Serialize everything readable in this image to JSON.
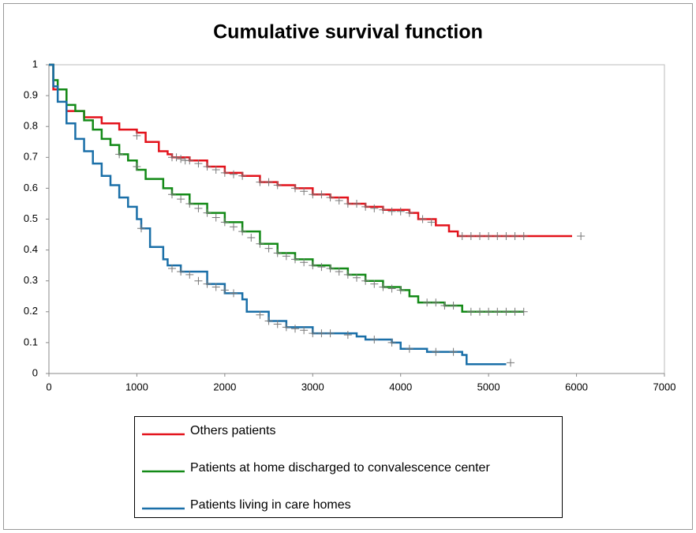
{
  "chart_data": {
    "type": "line",
    "step": true,
    "title": "Cumulative survival function",
    "xlim": [
      0,
      7000
    ],
    "xticks": [
      0,
      1000,
      2000,
      3000,
      4000,
      5000,
      6000,
      7000
    ],
    "ylim": [
      0,
      1
    ],
    "yticks": [
      0,
      0.1,
      0.2,
      0.3,
      0.4,
      0.5,
      0.6,
      0.7,
      0.8,
      0.9,
      1
    ],
    "grid": false,
    "legend": "bottom",
    "censor_color": "#777777",
    "series": [
      {
        "name": "Others patients",
        "color": "#e3121b",
        "x": [
          0,
          50,
          200,
          400,
          600,
          800,
          1000,
          1100,
          1250,
          1350,
          1400,
          1600,
          1800,
          2000,
          2200,
          2400,
          2600,
          2800,
          3000,
          3200,
          3400,
          3600,
          3800,
          4100,
          4200,
          4400,
          4550,
          4650,
          5950
        ],
        "values": [
          1,
          0.92,
          0.85,
          0.83,
          0.81,
          0.79,
          0.78,
          0.75,
          0.72,
          0.71,
          0.7,
          0.69,
          0.67,
          0.65,
          0.64,
          0.62,
          0.61,
          0.6,
          0.58,
          0.57,
          0.55,
          0.54,
          0.53,
          0.52,
          0.5,
          0.48,
          0.46,
          0.445,
          0.445
        ],
        "censored_x": [
          1000,
          1400,
          1450,
          1500,
          1550,
          1600,
          1700,
          1800,
          1900,
          2000,
          2100,
          2200,
          2400,
          2500,
          2600,
          2800,
          2900,
          3000,
          3100,
          3200,
          3300,
          3400,
          3500,
          3600,
          3700,
          3800,
          3900,
          4000,
          4100,
          4250,
          4350,
          4700,
          4800,
          4900,
          5000,
          5100,
          5200,
          5300,
          5400,
          6050
        ],
        "censored_values": [
          0.77,
          0.7,
          0.7,
          0.695,
          0.69,
          0.69,
          0.68,
          0.67,
          0.66,
          0.65,
          0.645,
          0.64,
          0.62,
          0.62,
          0.61,
          0.6,
          0.59,
          0.58,
          0.58,
          0.57,
          0.56,
          0.55,
          0.55,
          0.54,
          0.535,
          0.53,
          0.525,
          0.525,
          0.52,
          0.5,
          0.49,
          0.445,
          0.445,
          0.445,
          0.445,
          0.445,
          0.445,
          0.445,
          0.445,
          0.445
        ]
      },
      {
        "name": "Patients at home discharged to convalescence center",
        "color": "#138a17",
        "x": [
          0,
          50,
          100,
          200,
          300,
          400,
          500,
          600,
          700,
          800,
          900,
          1000,
          1100,
          1300,
          1400,
          1600,
          1800,
          2000,
          2200,
          2400,
          2600,
          2800,
          3000,
          3200,
          3400,
          3600,
          3800,
          4000,
          4100,
          4200,
          4500,
          4700,
          5400
        ],
        "values": [
          1,
          0.95,
          0.92,
          0.87,
          0.85,
          0.82,
          0.79,
          0.76,
          0.74,
          0.71,
          0.69,
          0.66,
          0.63,
          0.6,
          0.58,
          0.55,
          0.52,
          0.49,
          0.46,
          0.42,
          0.39,
          0.37,
          0.35,
          0.34,
          0.32,
          0.3,
          0.28,
          0.27,
          0.25,
          0.23,
          0.22,
          0.2,
          0.2
        ],
        "censored_x": [
          800,
          1000,
          1400,
          1500,
          1600,
          1700,
          1800,
          1900,
          2000,
          2100,
          2200,
          2300,
          2400,
          2500,
          2600,
          2700,
          2800,
          2900,
          3000,
          3100,
          3200,
          3300,
          3400,
          3500,
          3600,
          3700,
          3800,
          3900,
          4000,
          4300,
          4400,
          4500,
          4600,
          4800,
          4900,
          5000,
          5100,
          5200,
          5300,
          5400
        ],
        "censored_values": [
          0.71,
          0.67,
          0.58,
          0.565,
          0.55,
          0.535,
          0.52,
          0.505,
          0.49,
          0.475,
          0.46,
          0.44,
          0.42,
          0.405,
          0.39,
          0.38,
          0.37,
          0.36,
          0.35,
          0.345,
          0.34,
          0.33,
          0.32,
          0.31,
          0.3,
          0.29,
          0.28,
          0.275,
          0.27,
          0.23,
          0.23,
          0.22,
          0.22,
          0.2,
          0.2,
          0.2,
          0.2,
          0.2,
          0.2,
          0.2
        ]
      },
      {
        "name": "Patients living in care homes",
        "color": "#1a6fa8",
        "x": [
          0,
          50,
          100,
          200,
          300,
          400,
          500,
          600,
          700,
          800,
          900,
          1000,
          1050,
          1150,
          1300,
          1350,
          1500,
          1800,
          2000,
          2200,
          2250,
          2500,
          2700,
          3000,
          3500,
          3600,
          3900,
          4000,
          4300,
          4700,
          4750,
          5200
        ],
        "values": [
          1,
          0.93,
          0.88,
          0.81,
          0.76,
          0.72,
          0.68,
          0.64,
          0.61,
          0.57,
          0.54,
          0.5,
          0.47,
          0.41,
          0.37,
          0.35,
          0.33,
          0.29,
          0.26,
          0.24,
          0.2,
          0.17,
          0.15,
          0.13,
          0.12,
          0.11,
          0.1,
          0.08,
          0.07,
          0.06,
          0.03,
          0.03
        ],
        "censored_x": [
          1050,
          1400,
          1500,
          1600,
          1700,
          1800,
          1900,
          2000,
          2100,
          2400,
          2500,
          2600,
          2700,
          2800,
          2900,
          3000,
          3100,
          3200,
          3400,
          3700,
          3900,
          4100,
          4400,
          4600,
          5250
        ],
        "censored_values": [
          0.47,
          0.34,
          0.33,
          0.32,
          0.3,
          0.29,
          0.28,
          0.27,
          0.26,
          0.19,
          0.17,
          0.16,
          0.15,
          0.145,
          0.14,
          0.13,
          0.13,
          0.13,
          0.125,
          0.11,
          0.1,
          0.08,
          0.07,
          0.07,
          0.035
        ]
      }
    ]
  }
}
